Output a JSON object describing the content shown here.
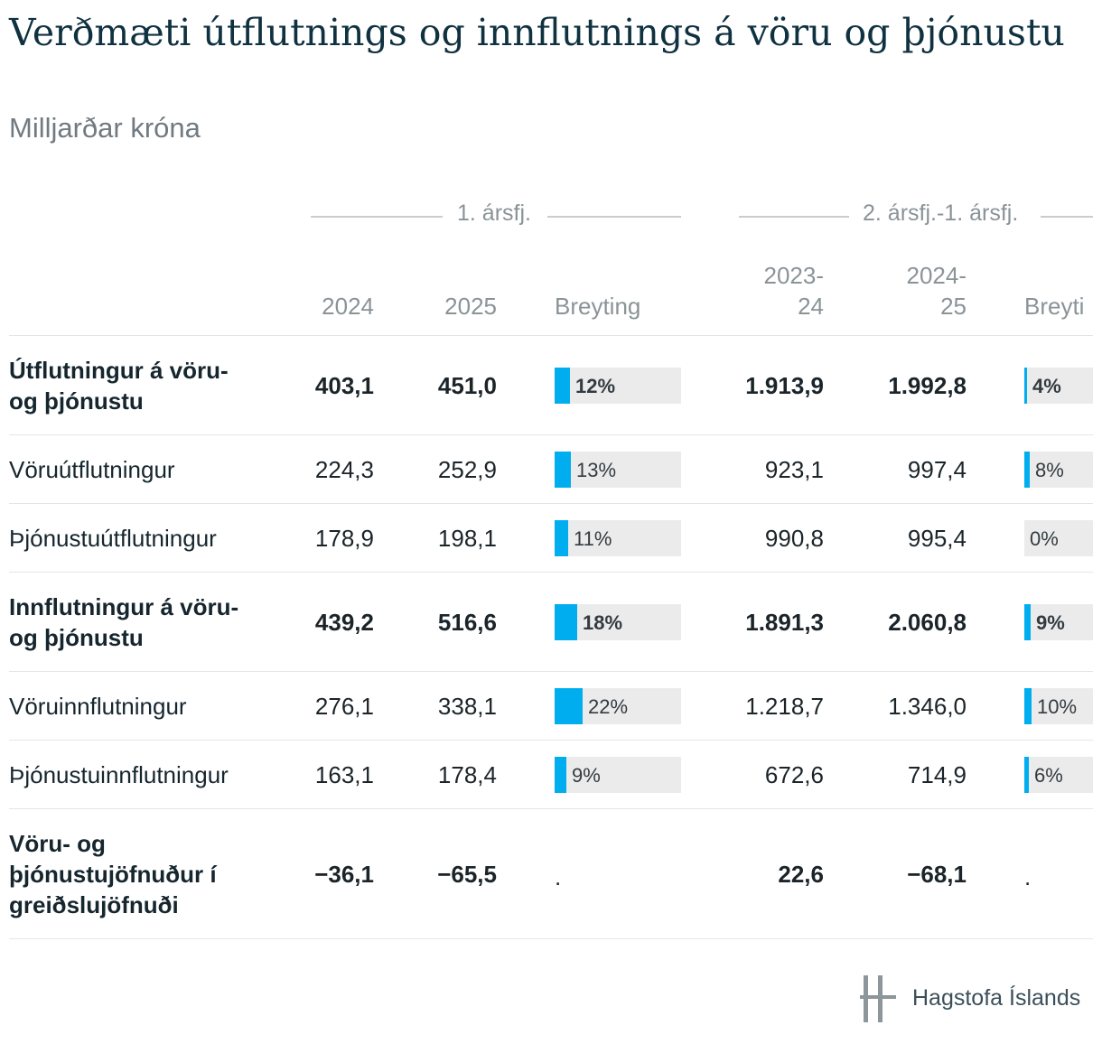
{
  "header": {
    "title": "Verðmæti útflutnings og innflutnings á vöru og þjónustu",
    "subtitle": "Milljarðar króna"
  },
  "groups": [
    "1. ársfj.",
    "2. ársfj.-1. ársfj."
  ],
  "columns": {
    "c2024": "2024",
    "c2025": "2025",
    "change1": "Breyting",
    "c2023_24": "2023-\n24",
    "c2024_25": "2024-\n25",
    "change2": "Breyti"
  },
  "chart_data": {
    "type": "table",
    "column_groups": [
      {
        "name": "1. ársfj.",
        "columns": [
          "2024",
          "2025",
          "Breyting"
        ]
      },
      {
        "name": "2. ársfj.-1. ársfj.",
        "columns": [
          "2023-24",
          "2024-25",
          "Breyting"
        ]
      }
    ],
    "rows": [
      {
        "label": "Útflutningur á vöru- og þjónustu",
        "bold": true,
        "v2024": "403,1",
        "v2025": "451,0",
        "ch1": 12,
        "ch1_label": "12%",
        "v2023_24": "1.913,9",
        "v2024_25": "1.992,8",
        "ch2": 4,
        "ch2_label": "4%"
      },
      {
        "label": "Vöruútflutningur",
        "bold": false,
        "v2024": "224,3",
        "v2025": "252,9",
        "ch1": 13,
        "ch1_label": "13%",
        "v2023_24": "923,1",
        "v2024_25": "997,4",
        "ch2": 8,
        "ch2_label": "8%"
      },
      {
        "label": "Þjónustuútflutningur",
        "bold": false,
        "v2024": "178,9",
        "v2025": "198,1",
        "ch1": 11,
        "ch1_label": "11%",
        "v2023_24": "990,8",
        "v2024_25": "995,4",
        "ch2": 0,
        "ch2_label": "0%"
      },
      {
        "label": "Innflutningur á vöru- og þjónustu",
        "bold": true,
        "v2024": "439,2",
        "v2025": "516,6",
        "ch1": 18,
        "ch1_label": "18%",
        "v2023_24": "1.891,3",
        "v2024_25": "2.060,8",
        "ch2": 9,
        "ch2_label": "9%"
      },
      {
        "label": "Vöruinnflutningur",
        "bold": false,
        "v2024": "276,1",
        "v2025": "338,1",
        "ch1": 22,
        "ch1_label": "22%",
        "v2023_24": "1.218,7",
        "v2024_25": "1.346,0",
        "ch2": 10,
        "ch2_label": "10%"
      },
      {
        "label": "Þjónustuinnflutningur",
        "bold": false,
        "v2024": "163,1",
        "v2025": "178,4",
        "ch1": 9,
        "ch1_label": "9%",
        "v2023_24": "672,6",
        "v2024_25": "714,9",
        "ch2": 6,
        "ch2_label": "6%"
      },
      {
        "label": "Vöru- og þjónustujöfnuður í greiðslujöfnuði",
        "bold": true,
        "v2024": "−36,1",
        "v2025": "−65,5",
        "ch1": null,
        "ch1_label": ".",
        "v2023_24": "22,6",
        "v2024_25": "−68,1",
        "ch2": null,
        "ch2_label": "."
      }
    ],
    "bar_scale_max_percent": 100,
    "bar_color": "#00aeef",
    "bar_track_color": "#ebebeb"
  },
  "footer": {
    "logo_text": "Hagstofa Íslands"
  }
}
